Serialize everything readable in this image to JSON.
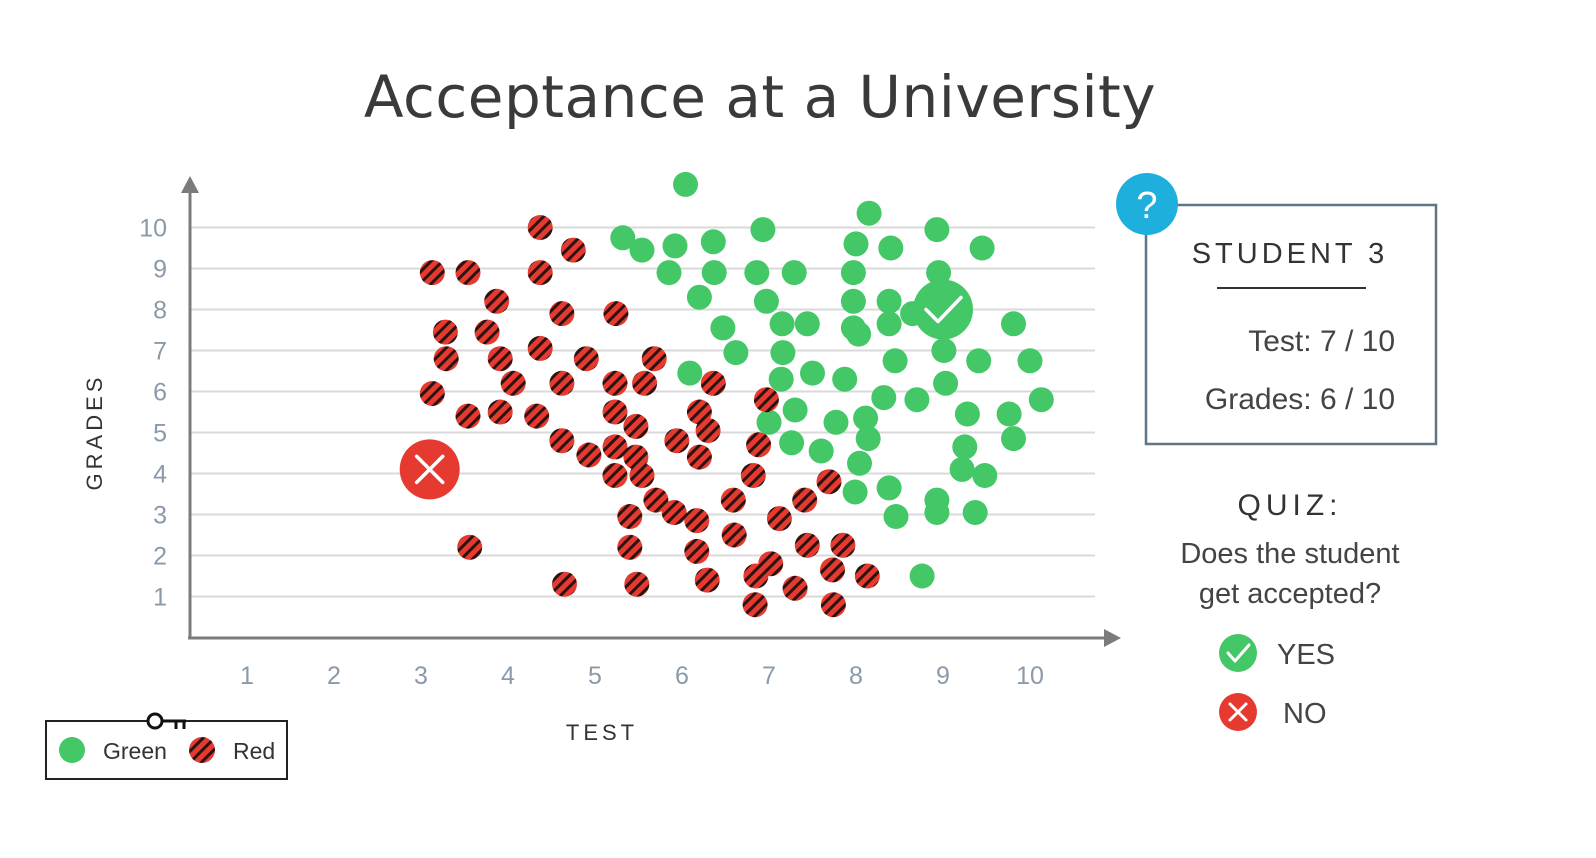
{
  "colors": {
    "accepted": "#44c767",
    "rejected": "#e63a30",
    "rejected_stripe": "#2b1410",
    "help_badge": "#1fafdc",
    "panel_border": "#5d7584"
  },
  "panel": {
    "help_icon": "question-mark-icon",
    "help_symbol": "?",
    "heading": "STUDENT 3",
    "test_line": "Test: 7 / 10",
    "grades_line": "Grades: 6 / 10"
  },
  "quiz": {
    "heading": "QUIZ:",
    "question_line1": "Does the student",
    "question_line2": "get accepted?",
    "options": [
      {
        "label": "YES",
        "icon": "check-icon"
      },
      {
        "label": "NO",
        "icon": "cross-icon"
      }
    ]
  },
  "legend": {
    "icon": "key-icon",
    "items": [
      {
        "label": "Green",
        "style": "solid-green"
      },
      {
        "label": "Red",
        "style": "hatched-red"
      }
    ]
  },
  "chart_data": {
    "type": "scatter",
    "title": "Acceptance at a University",
    "xlabel": "TEST",
    "ylabel": "GRADES",
    "xticks": [
      "1",
      "2",
      "3",
      "4",
      "5",
      "6",
      "7",
      "8",
      "9",
      "10"
    ],
    "yticks": [
      "1",
      "2",
      "3",
      "4",
      "5",
      "6",
      "7",
      "8",
      "9",
      "10"
    ],
    "xlim": [
      0.5,
      11.2
    ],
    "ylim": [
      0,
      11
    ],
    "grid": "horizontal",
    "series": [
      {
        "name": "Green",
        "points": [
          [
            6.04,
            11.05
          ],
          [
            8.15,
            10.35
          ],
          [
            6.93,
            9.95
          ],
          [
            8.93,
            9.95
          ],
          [
            5.32,
            9.75
          ],
          [
            5.54,
            9.45
          ],
          [
            5.92,
            9.55
          ],
          [
            6.36,
            9.65
          ],
          [
            8.0,
            9.6
          ],
          [
            8.4,
            9.5
          ],
          [
            9.45,
            9.5
          ],
          [
            5.85,
            8.9
          ],
          [
            6.37,
            8.9
          ],
          [
            6.86,
            8.9
          ],
          [
            7.29,
            8.9
          ],
          [
            7.97,
            8.9
          ],
          [
            8.95,
            8.9
          ],
          [
            6.2,
            8.3
          ],
          [
            6.97,
            8.2
          ],
          [
            7.97,
            8.2
          ],
          [
            8.38,
            8.2
          ],
          [
            8.65,
            7.9
          ],
          [
            6.47,
            7.55
          ],
          [
            7.15,
            7.65
          ],
          [
            7.44,
            7.65
          ],
          [
            7.97,
            7.55
          ],
          [
            8.03,
            7.4
          ],
          [
            8.38,
            7.65
          ],
          [
            9.81,
            7.65
          ],
          [
            6.62,
            6.95
          ],
          [
            7.16,
            6.95
          ],
          [
            9.01,
            7.0
          ],
          [
            8.45,
            6.75
          ],
          [
            9.41,
            6.75
          ],
          [
            10.0,
            6.75
          ],
          [
            6.09,
            6.45
          ],
          [
            7.14,
            6.3
          ],
          [
            7.5,
            6.45
          ],
          [
            7.87,
            6.3
          ],
          [
            9.03,
            6.2
          ],
          [
            8.32,
            5.85
          ],
          [
            8.7,
            5.8
          ],
          [
            10.13,
            5.8
          ],
          [
            7.3,
            5.55
          ],
          [
            9.28,
            5.45
          ],
          [
            9.76,
            5.45
          ],
          [
            7.0,
            5.25
          ],
          [
            7.77,
            5.25
          ],
          [
            8.11,
            5.35
          ],
          [
            8.14,
            4.85
          ],
          [
            9.81,
            4.85
          ],
          [
            7.26,
            4.75
          ],
          [
            7.6,
            4.55
          ],
          [
            9.25,
            4.65
          ],
          [
            8.04,
            4.25
          ],
          [
            9.22,
            4.1
          ],
          [
            9.48,
            3.95
          ],
          [
            7.99,
            3.55
          ],
          [
            8.38,
            3.65
          ],
          [
            8.93,
            3.35
          ],
          [
            8.93,
            3.05
          ],
          [
            9.37,
            3.05
          ],
          [
            8.46,
            2.95
          ],
          [
            8.76,
            1.5
          ]
        ]
      },
      {
        "name": "Red",
        "points": [
          [
            4.37,
            10.0
          ],
          [
            4.75,
            9.45
          ],
          [
            3.13,
            8.9
          ],
          [
            3.54,
            8.9
          ],
          [
            4.37,
            8.9
          ],
          [
            3.87,
            8.2
          ],
          [
            4.62,
            7.9
          ],
          [
            5.24,
            7.9
          ],
          [
            3.28,
            7.45
          ],
          [
            3.76,
            7.45
          ],
          [
            4.37,
            7.05
          ],
          [
            3.29,
            6.8
          ],
          [
            3.91,
            6.8
          ],
          [
            4.9,
            6.8
          ],
          [
            5.68,
            6.8
          ],
          [
            4.06,
            6.2
          ],
          [
            4.62,
            6.2
          ],
          [
            5.23,
            6.2
          ],
          [
            5.57,
            6.2
          ],
          [
            6.36,
            6.2
          ],
          [
            3.13,
            5.95
          ],
          [
            6.97,
            5.8
          ],
          [
            3.54,
            5.4
          ],
          [
            3.91,
            5.5
          ],
          [
            4.33,
            5.4
          ],
          [
            5.23,
            5.5
          ],
          [
            6.2,
            5.5
          ],
          [
            5.47,
            5.15
          ],
          [
            6.3,
            5.05
          ],
          [
            4.62,
            4.8
          ],
          [
            5.23,
            4.65
          ],
          [
            5.47,
            4.4
          ],
          [
            5.94,
            4.8
          ],
          [
            6.88,
            4.7
          ],
          [
            4.93,
            4.45
          ],
          [
            6.2,
            4.4
          ],
          [
            5.23,
            3.95
          ],
          [
            5.54,
            3.95
          ],
          [
            6.82,
            3.95
          ],
          [
            7.69,
            3.8
          ],
          [
            5.7,
            3.35
          ],
          [
            6.59,
            3.35
          ],
          [
            7.41,
            3.35
          ],
          [
            5.4,
            2.95
          ],
          [
            5.91,
            3.05
          ],
          [
            6.17,
            2.85
          ],
          [
            7.12,
            2.9
          ],
          [
            6.6,
            2.5
          ],
          [
            3.56,
            2.2
          ],
          [
            5.4,
            2.2
          ],
          [
            6.17,
            2.1
          ],
          [
            7.44,
            2.25
          ],
          [
            7.85,
            2.25
          ],
          [
            6.85,
            1.5
          ],
          [
            7.02,
            1.8
          ],
          [
            7.73,
            1.65
          ],
          [
            8.13,
            1.5
          ],
          [
            4.65,
            1.3
          ],
          [
            5.48,
            1.3
          ],
          [
            6.29,
            1.4
          ],
          [
            7.3,
            1.2
          ],
          [
            6.84,
            0.8
          ],
          [
            7.74,
            0.8
          ]
        ]
      }
    ],
    "highlighted_points": [
      {
        "x": 3.1,
        "y": 4.1,
        "marker": "cross-icon",
        "color": "rejected"
      },
      {
        "x": 9.0,
        "y": 8.0,
        "marker": "check-icon",
        "color": "accepted"
      }
    ]
  }
}
